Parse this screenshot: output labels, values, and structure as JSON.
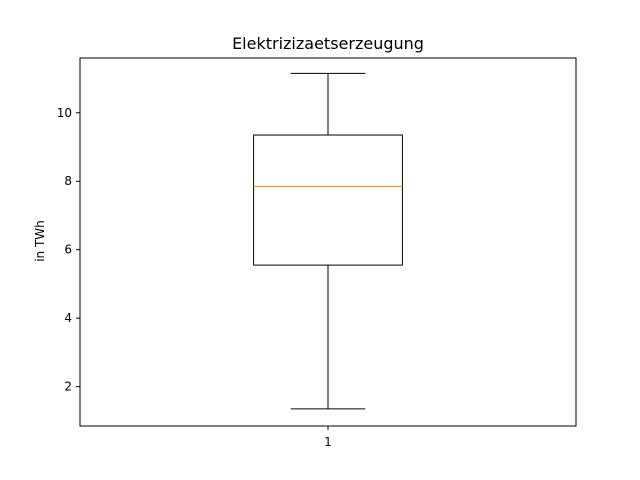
{
  "chart_data": {
    "type": "box",
    "title": "Elektrizizaetserzeugung",
    "xlabel": "",
    "ylabel": "in TWh",
    "categories": [
      "1"
    ],
    "yticks": [
      2,
      4,
      6,
      8,
      10
    ],
    "ylim": [
      0.85,
      11.6
    ],
    "boxes": [
      {
        "category": "1",
        "whisker_low": 1.35,
        "q1": 5.55,
        "median": 7.85,
        "q3": 9.35,
        "whisker_high": 11.15
      }
    ],
    "colors": {
      "median": "#ff7f0e",
      "box": "#000000"
    },
    "grid": false
  }
}
